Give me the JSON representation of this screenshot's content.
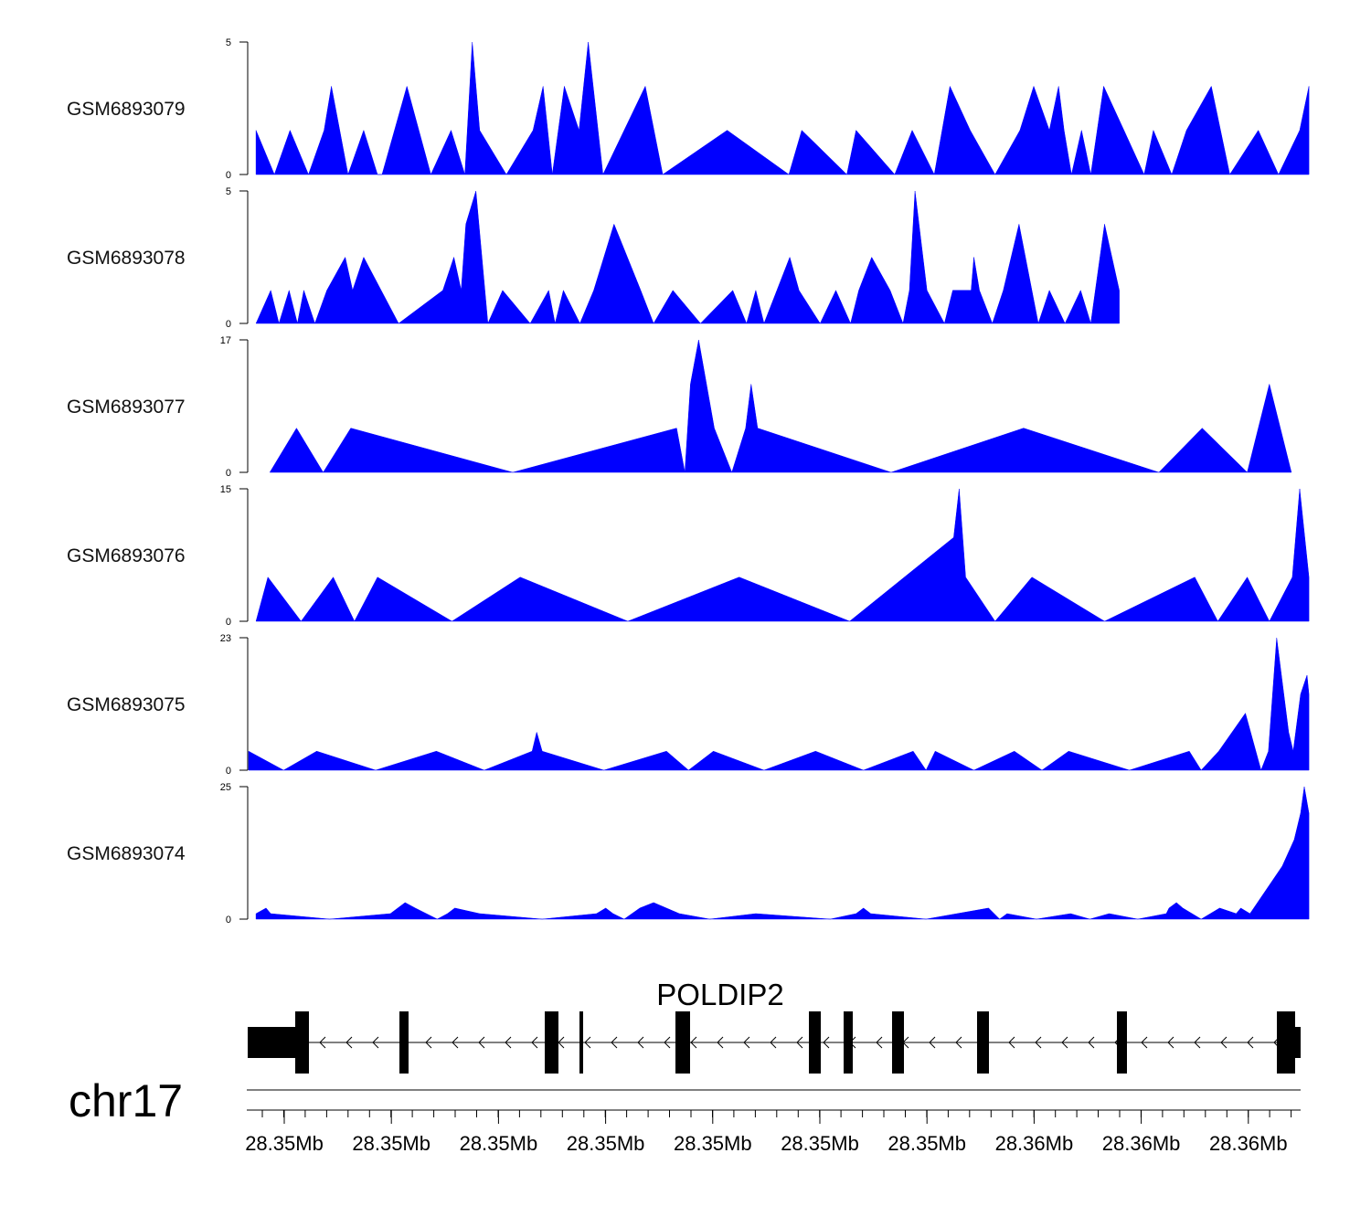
{
  "chart_data": {
    "type": "area",
    "chromosome": "chr17",
    "gene": {
      "name": "POLDIP2",
      "strand": "-"
    },
    "x_tick_labels": [
      "28.35Mb",
      "28.35Mb",
      "28.35Mb",
      "28.35Mb",
      "28.35Mb",
      "28.35Mb",
      "28.35Mb",
      "28.36Mb",
      "28.36Mb",
      "28.36Mb"
    ],
    "x_domain": [
      0,
      1143
    ],
    "tracks": [
      {
        "name": "GSM6893079",
        "ylim": [
          0,
          5
        ],
        "color": "#0000ff",
        "x": [
          8,
          28,
          45,
          65,
          82,
          90,
          99,
          108,
          125,
          140,
          145,
          172,
          198,
          220,
          235,
          243,
          251,
          280,
          309,
          320,
          330,
          343,
          359,
          369,
          385,
          431,
          450,
          520,
          587,
          601,
          650,
          660,
          702,
          721,
          745,
          762,
          784,
          811,
          838,
          853,
          870,
          880,
          886,
          894,
          905,
          915,
          929,
          951,
          973,
          983,
          1003,
          1019,
          1046,
          1066,
          1097,
          1119,
          1142,
          1152
        ],
        "y": [
          1.67,
          0,
          1.67,
          0,
          1.67,
          3.33,
          1.67,
          0,
          1.67,
          0,
          0,
          3.33,
          0,
          1.67,
          0,
          5,
          1.67,
          0,
          1.67,
          3.33,
          0,
          3.33,
          1.67,
          5,
          0,
          3.33,
          0,
          1.67,
          0,
          1.67,
          0,
          1.67,
          0,
          1.67,
          0,
          3.33,
          1.67,
          0,
          1.67,
          3.33,
          1.67,
          3.33,
          1.67,
          0,
          1.67,
          0,
          3.33,
          1.67,
          0,
          1.67,
          0,
          1.67,
          3.33,
          0,
          1.67,
          0,
          1.67,
          3.33
        ]
      },
      {
        "name": "GSM6893078",
        "ylim": [
          0,
          5
        ],
        "color": "#0000ff",
        "x": [
          8,
          24,
          33,
          44,
          53,
          60,
          72,
          85,
          105,
          113,
          125,
          163,
          211,
          223,
          231,
          236,
          247,
          260,
          276,
          306,
          326,
          333,
          342,
          360,
          375,
          397,
          426,
          440,
          461,
          491,
          526,
          541,
          551,
          560,
          574,
          588,
          598,
          621,
          638,
          654,
          663,
          677,
          697,
          711,
          718,
          724,
          737,
          756,
          765,
          785,
          788,
          794,
          808,
          820,
          837,
          858,
          870,
          887,
          904,
          915,
          930,
          946
        ],
        "y": [
          0,
          1.25,
          0,
          1.25,
          0,
          1.25,
          0,
          1.25,
          2.5,
          1.25,
          2.5,
          0,
          1.25,
          2.5,
          1.25,
          3.75,
          5,
          0,
          1.25,
          0,
          1.25,
          0,
          1.25,
          0,
          1.25,
          3.75,
          1.25,
          0,
          1.25,
          0,
          1.25,
          0,
          1.25,
          0,
          1.25,
          2.5,
          1.25,
          0,
          1.25,
          0,
          1.25,
          2.5,
          1.25,
          0,
          1.25,
          5,
          1.25,
          0,
          1.25,
          1.25,
          2.5,
          1.25,
          0,
          1.25,
          3.75,
          0,
          1.25,
          0,
          1.25,
          0,
          3.75,
          1.25
        ]
      },
      {
        "name": "GSM6893077",
        "ylim": [
          0,
          17
        ],
        "color": "#0000ff",
        "x": [
          23,
          52,
          81,
          111,
          287,
          465,
          474,
          480,
          489,
          506,
          525,
          540,
          546,
          553,
          698,
          842,
          989,
          1036,
          1085,
          1097,
          1109,
          1133
        ],
        "y": [
          0,
          5.67,
          0,
          5.67,
          0,
          5.67,
          0,
          11.33,
          17,
          5.67,
          0,
          5.67,
          11.33,
          5.67,
          0,
          5.67,
          0,
          5.67,
          0,
          5.67,
          11.33,
          0
        ],
        "note": ""
      },
      {
        "name": "GSM6893076",
        "ylim": [
          0,
          15
        ],
        "color": "#0000ff",
        "x": [
          8,
          21,
          57,
          92,
          115,
          140,
          221,
          295,
          412,
          533,
          653,
          766,
          772,
          779,
          811,
          851,
          930,
          1028,
          1053,
          1085,
          1109,
          1134,
          1142,
          1152
        ],
        "y": [
          0,
          5,
          0,
          5,
          0,
          5,
          0,
          5,
          0,
          5,
          0,
          9.5,
          15,
          5,
          0,
          5,
          0,
          5,
          0,
          5,
          0,
          5,
          15,
          5
        ]
      },
      {
        "name": "GSM6893075",
        "ylim": [
          0,
          23
        ],
        "color": "#0000ff",
        "x": [
          0,
          38,
          74,
          138,
          204,
          256,
          308,
          313,
          319,
          386,
          454,
          478,
          505,
          560,
          616,
          668,
          722,
          736,
          746,
          788,
          832,
          862,
          891,
          957,
          1022,
          1035,
          1054,
          1083,
          1100,
          1108,
          1117,
          1130,
          1135,
          1143,
          1150,
          1152
        ],
        "y": [
          3.3,
          0,
          3.3,
          0,
          3.3,
          0,
          3.3,
          6.6,
          3.3,
          0,
          3.3,
          0,
          3.3,
          0,
          3.3,
          0,
          3.3,
          0,
          3.3,
          0,
          3.3,
          0,
          3.3,
          0,
          3.3,
          0,
          3.3,
          9.9,
          0,
          3.3,
          23,
          6.6,
          3.3,
          13.2,
          16.5,
          13.2
        ]
      },
      {
        "name": "GSM6893074",
        "ylim": [
          0,
          25
        ],
        "color": "#0000ff",
        "x": [
          8,
          19,
          24,
          88,
          154,
          170,
          181,
          205,
          216,
          224,
          251,
          319,
          378,
          388,
          396,
          408,
          425,
          440,
          468,
          501,
          551,
          632,
          660,
          668,
          676,
          736,
          804,
          816,
          824,
          856,
          893,
          914,
          935,
          966,
          997,
          1000,
          1008,
          1015,
          1035,
          1055,
          1073,
          1078,
          1088,
          1123,
          1136,
          1143,
          1147,
          1152
        ],
        "y": [
          1.04,
          2.08,
          1.04,
          0,
          1.04,
          3.12,
          2.08,
          0,
          1.04,
          2.08,
          1.04,
          0,
          1.04,
          2.08,
          1.04,
          0,
          2.08,
          3.12,
          1.04,
          0,
          1.04,
          0,
          1.04,
          2.08,
          1.04,
          0,
          2.08,
          0,
          1.04,
          0,
          1.04,
          0,
          1.04,
          0,
          1.04,
          2.08,
          3.12,
          2.08,
          0,
          2.08,
          1.04,
          2.08,
          1.04,
          10,
          15,
          20,
          25,
          20
        ]
      }
    ]
  }
}
